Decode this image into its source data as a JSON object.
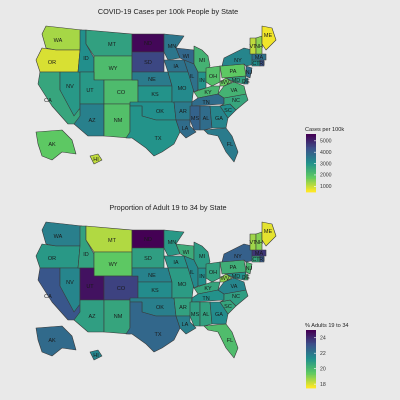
{
  "panels": [
    {
      "title": "COVID-19 Cases per 100k People by State",
      "legend": {
        "title": "Cases per 100k",
        "ticks": [
          "5000",
          "4000",
          "3000",
          "2000",
          "1000"
        ],
        "tick_values": [
          5000,
          4000,
          3000,
          2000,
          1000
        ],
        "min": 500,
        "max": 5600
      },
      "state_values": {
        "WA": 1200,
        "OR": 800,
        "CA": 2600,
        "NV": 2900,
        "ID": 3100,
        "MT": 2700,
        "WY": 2100,
        "UT": 2900,
        "AZ": 3400,
        "CO": 2100,
        "NM": 2000,
        "ND": 5500,
        "SD": 4500,
        "NE": 3500,
        "KS": 3000,
        "OK": 3100,
        "TX": 3000,
        "MN": 3600,
        "IA": 3700,
        "MO": 3200,
        "AR": 3500,
        "LA": 3800,
        "WI": 3900,
        "IL": 3700,
        "IN": 3000,
        "MI": 2300,
        "OH": 2000,
        "KY": 2200,
        "TN": 3800,
        "MS": 4000,
        "AL": 3800,
        "GA": 3300,
        "FL": 3500,
        "SC": 3100,
        "NC": 2600,
        "VA": 2300,
        "WV": 1700,
        "PA": 1800,
        "NY": 3300,
        "VT": 1000,
        "NH": 1400,
        "ME": 600,
        "MA": 3700,
        "RI": 4300,
        "CT": 3100,
        "NJ": 3800,
        "DE": 3400,
        "MD": 2700,
        "AK": 1800,
        "HI": 1000
      }
    },
    {
      "title": "Proportion of Adult 19 to 34 by State",
      "legend": {
        "title": "% Adults 19 to 34",
        "ticks": [
          "24",
          "22",
          "20",
          "18"
        ],
        "tick_values": [
          24,
          22,
          20,
          18
        ],
        "min": 17.5,
        "max": 25
      },
      "state_values": {
        "WA": 21.8,
        "OR": 21.0,
        "CA": 23.0,
        "NV": 21.6,
        "ID": 20.7,
        "MT": 18.4,
        "WY": 19.4,
        "UT": 24.6,
        "AZ": 20.8,
        "CO": 23.5,
        "NM": 20.6,
        "ND": 25.0,
        "SD": 20.8,
        "NE": 21.7,
        "KS": 21.4,
        "OK": 21.8,
        "TX": 22.5,
        "MN": 21.0,
        "IA": 21.1,
        "MO": 20.9,
        "AR": 20.7,
        "LA": 21.8,
        "WI": 20.4,
        "IL": 21.5,
        "IN": 21.3,
        "MI": 20.9,
        "OH": 20.7,
        "KY": 20.6,
        "TN": 21.2,
        "MS": 20.8,
        "AL": 20.7,
        "GA": 21.4,
        "FL": 19.8,
        "SC": 20.6,
        "NC": 20.8,
        "VA": 21.6,
        "WV": 18.8,
        "PA": 20.3,
        "NY": 22.7,
        "VT": 18.6,
        "NH": 18.9,
        "ME": 17.8,
        "MA": 23.8,
        "RI": 22.9,
        "CT": 20.6,
        "NJ": 20.0,
        "DE": 20.3,
        "MD": 21.2,
        "AK": 22.4,
        "HI": 21.6
      }
    }
  ],
  "colors": {
    "background": "#e9e9e9",
    "border": "#3a3a3a",
    "label": "#1a1a1a",
    "viridis": [
      "#440154",
      "#3b528b",
      "#21918c",
      "#5ec962",
      "#fde725"
    ]
  }
}
